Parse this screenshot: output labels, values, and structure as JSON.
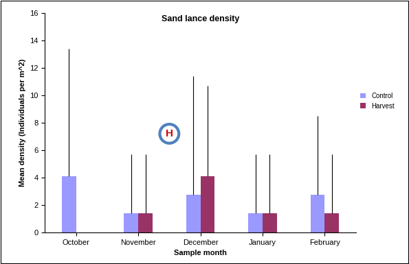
{
  "chart_data": {
    "type": "bar",
    "title": "Sand lance density",
    "x_label": "Sample month",
    "y_label": "Mean density (Individuals per m^2)",
    "categories": [
      "October",
      "November",
      "December",
      "January",
      "February"
    ],
    "series": [
      {
        "name": "Control",
        "color": "#9999FF",
        "values": [
          4.1,
          1.4,
          2.75,
          1.4,
          2.75
        ],
        "error_plus": [
          9.3,
          4.3,
          8.65,
          4.3,
          5.75
        ]
      },
      {
        "name": "Harvest",
        "color": "#993366",
        "values": [
          0,
          1.4,
          4.1,
          1.4,
          1.4
        ],
        "error_plus": [
          0,
          4.3,
          6.6,
          4.3,
          4.3
        ]
      }
    ],
    "annotation": "H",
    "ylim": [
      0,
      16
    ],
    "yticks": [
      0,
      2,
      4,
      6,
      8,
      10,
      12,
      14,
      16
    ],
    "grid": false,
    "legend": "right"
  }
}
